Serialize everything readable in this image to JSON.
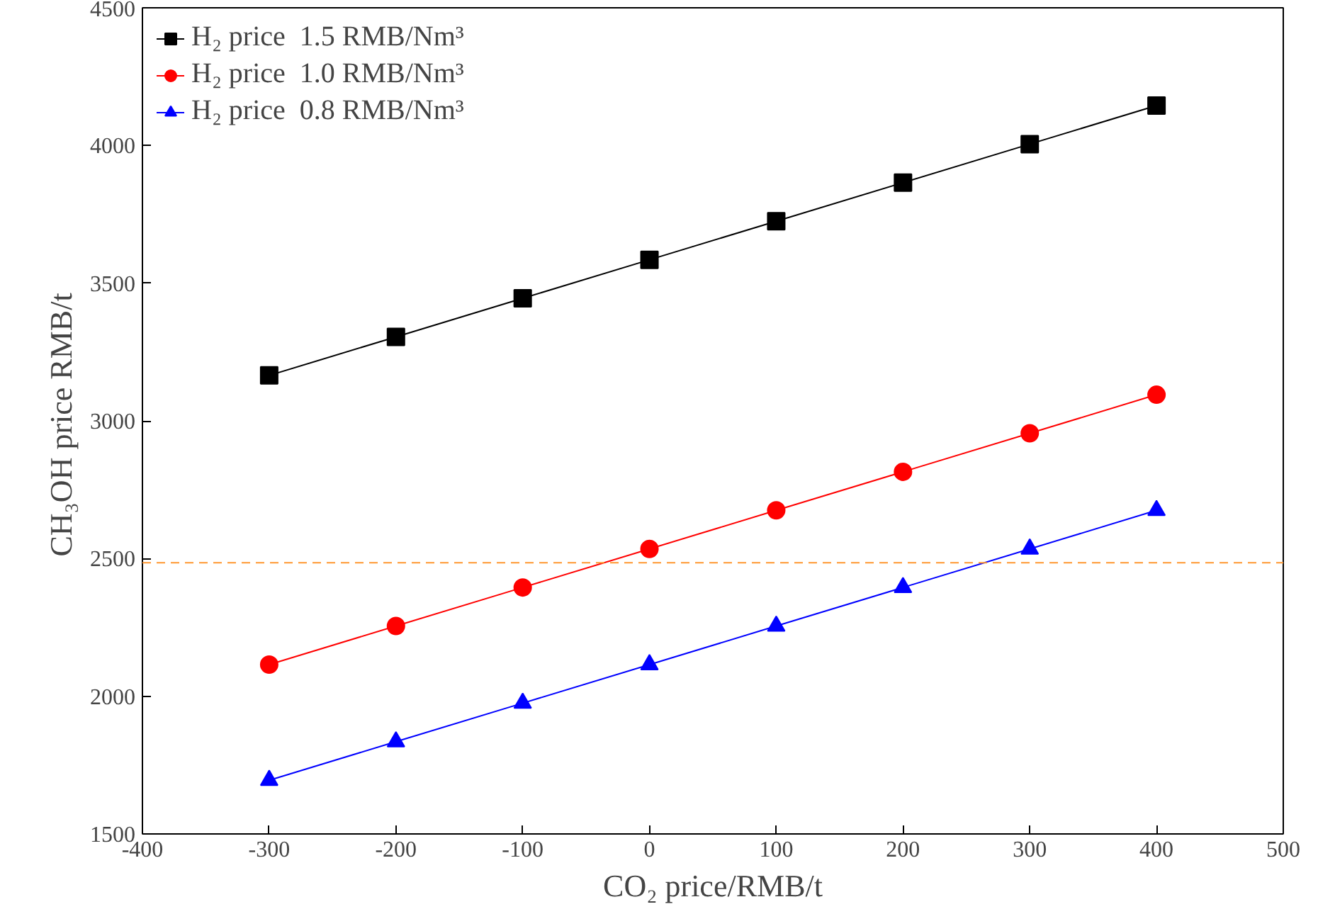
{
  "chart_data": {
    "type": "line",
    "xlabel": "CO₂ price/RMB/t",
    "ylabel": "CH₃OH price  RMB/t",
    "x": [
      -300,
      -200,
      -100,
      0,
      100,
      200,
      300,
      400
    ],
    "series": [
      {
        "name": "H₂ price  1.5 RMB/Nm³",
        "color": "#000000",
        "marker": "square",
        "values": [
          3165,
          3305,
          3445,
          3585,
          3725,
          3865,
          4005,
          4145
        ]
      },
      {
        "name": "H₂ price  1.0 RMB/Nm³",
        "color": "#ff0000",
        "marker": "circle",
        "values": [
          2115,
          2255,
          2395,
          2535,
          2675,
          2815,
          2955,
          3095
        ]
      },
      {
        "name": "H₂ price  0.8 RMB/Nm³",
        "color": "#0000ff",
        "marker": "triangle",
        "values": [
          1695,
          1835,
          1975,
          2115,
          2255,
          2395,
          2535,
          2675
        ]
      }
    ],
    "xlim": [
      -400,
      500
    ],
    "xticks": [
      -400,
      -300,
      -200,
      -100,
      0,
      100,
      200,
      300,
      400,
      500
    ],
    "ylim": [
      1500,
      4500
    ],
    "yticks": [
      1500,
      2000,
      2500,
      3000,
      3500,
      4000,
      4500
    ],
    "ref_lines": [
      {
        "axis": "y",
        "value": 2485,
        "color": "#ff9933",
        "line_style": "dashed"
      }
    ],
    "grid": false,
    "legend": "top left",
    "line_style": "solid"
  }
}
